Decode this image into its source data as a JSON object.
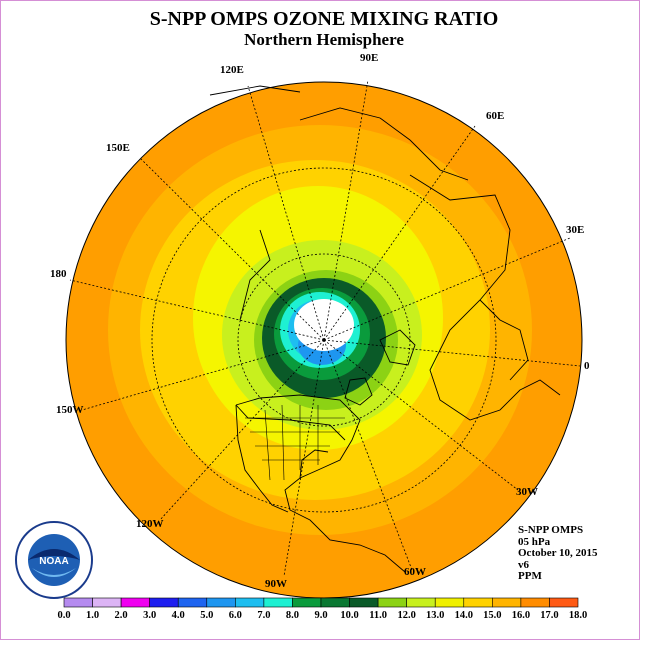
{
  "title": "S-NPP OMPS OZONE MIXING RATIO",
  "subtitle": "Northern Hemisphere",
  "longitude_labels": {
    "e90": "90E",
    "e60": "60E",
    "e30": "30E",
    "zero": "0",
    "w30": "30W",
    "w60": "60W",
    "w90": "90W",
    "w120": "120W",
    "w150": "150W",
    "d180": "180",
    "e150": "150E",
    "e120": "120E"
  },
  "info": {
    "instrument": "S-NPP OMPS",
    "level": "05 hPa",
    "date": "October 10, 2015",
    "version": "v6",
    "units": "PPM"
  },
  "logo": {
    "text": "NOAA",
    "ring_text": "NATIONAL OCEANIC AND ATMOSPHERIC ADMINISTRATION"
  },
  "colorbar": {
    "labels": [
      "0.0",
      "1.0",
      "2.0",
      "3.0",
      "4.0",
      "5.0",
      "6.0",
      "7.0",
      "8.0",
      "9.0",
      "10.0",
      "11.0",
      "12.0",
      "13.0",
      "14.0",
      "15.0",
      "16.0",
      "17.0",
      "18.0"
    ],
    "colors": [
      "#b58bef",
      "#dcb4f5",
      "#f000f0",
      "#1e1ef0",
      "#1e64f0",
      "#1e96f0",
      "#1ebef0",
      "#1ef0d2",
      "#0a9b3c",
      "#0a7832",
      "#0a5a28",
      "#8cd214",
      "#c8f01e",
      "#f0f000",
      "#ffd200",
      "#ffb400",
      "#ff8c00",
      "#ff5a14",
      "#f00000",
      "#8c5a3c"
    ]
  }
}
